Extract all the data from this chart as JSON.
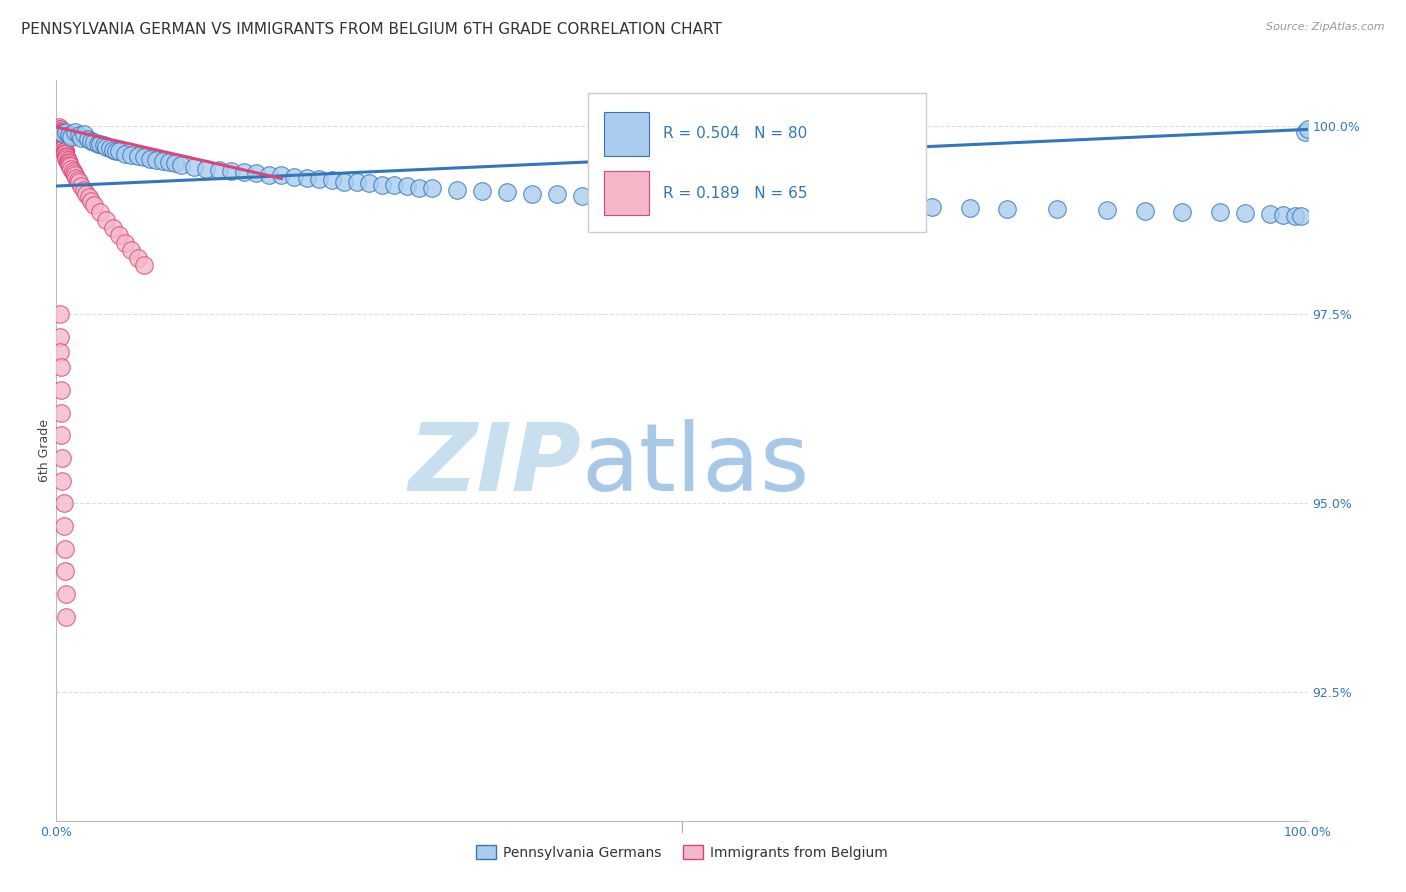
{
  "title": "PENNSYLVANIA GERMAN VS IMMIGRANTS FROM BELGIUM 6TH GRADE CORRELATION CHART",
  "source": "Source: ZipAtlas.com",
  "ylabel": "6th Grade",
  "ytick_labels": [
    "100.0%",
    "97.5%",
    "95.0%",
    "92.5%"
  ],
  "ytick_values": [
    1.0,
    0.975,
    0.95,
    0.925
  ],
  "xlim": [
    0.0,
    1.0
  ],
  "ylim": [
    0.908,
    1.006
  ],
  "legend_blue_label": "R = 0.504   N = 80",
  "legend_pink_label": "R = 0.189   N = 65",
  "legend_bottom_blue": "Pennsylvania Germans",
  "legend_bottom_pink": "Immigrants from Belgium",
  "blue_scatter_x": [
    0.005,
    0.008,
    0.01,
    0.012,
    0.015,
    0.018,
    0.02,
    0.022,
    0.025,
    0.028,
    0.03,
    0.033,
    0.035,
    0.038,
    0.04,
    0.043,
    0.045,
    0.048,
    0.05,
    0.055,
    0.06,
    0.065,
    0.07,
    0.075,
    0.08,
    0.085,
    0.09,
    0.095,
    0.1,
    0.11,
    0.12,
    0.13,
    0.14,
    0.15,
    0.16,
    0.17,
    0.18,
    0.19,
    0.2,
    0.21,
    0.22,
    0.23,
    0.24,
    0.25,
    0.26,
    0.27,
    0.28,
    0.29,
    0.3,
    0.32,
    0.34,
    0.36,
    0.38,
    0.4,
    0.42,
    0.44,
    0.46,
    0.48,
    0.5,
    0.53,
    0.56,
    0.59,
    0.62,
    0.65,
    0.68,
    0.7,
    0.73,
    0.76,
    0.8,
    0.84,
    0.87,
    0.9,
    0.93,
    0.95,
    0.97,
    0.98,
    0.99,
    0.995,
    0.998,
    1.0
  ],
  "blue_scatter_y": [
    0.999,
    0.9992,
    0.9988,
    0.9985,
    0.9991,
    0.9987,
    0.9983,
    0.9989,
    0.9982,
    0.998,
    0.9978,
    0.9976,
    0.9975,
    0.9974,
    0.9972,
    0.997,
    0.9968,
    0.9967,
    0.9966,
    0.9963,
    0.9961,
    0.996,
    0.9958,
    0.9956,
    0.9955,
    0.9953,
    0.9952,
    0.995,
    0.9948,
    0.9945,
    0.9943,
    0.9941,
    0.994,
    0.9938,
    0.9937,
    0.9935,
    0.9934,
    0.9932,
    0.993,
    0.9929,
    0.9928,
    0.9926,
    0.9925,
    0.9924,
    0.9922,
    0.9921,
    0.992,
    0.9918,
    0.9917,
    0.9915,
    0.9913,
    0.9912,
    0.991,
    0.9909,
    0.9907,
    0.9906,
    0.9905,
    0.9903,
    0.9902,
    0.99,
    0.9898,
    0.9897,
    0.9896,
    0.9895,
    0.9893,
    0.9892,
    0.9891,
    0.989,
    0.9889,
    0.9888,
    0.9887,
    0.9886,
    0.9885,
    0.9884,
    0.9883,
    0.9882,
    0.9881,
    0.988,
    0.9992,
    0.9995
  ],
  "blue_line_x": [
    0.0,
    1.0
  ],
  "blue_line_y": [
    0.992,
    0.9995
  ],
  "pink_scatter_x": [
    0.002,
    0.002,
    0.003,
    0.003,
    0.003,
    0.004,
    0.004,
    0.004,
    0.005,
    0.005,
    0.005,
    0.005,
    0.005,
    0.006,
    0.006,
    0.006,
    0.006,
    0.007,
    0.007,
    0.007,
    0.007,
    0.008,
    0.008,
    0.008,
    0.009,
    0.009,
    0.01,
    0.01,
    0.011,
    0.012,
    0.013,
    0.014,
    0.015,
    0.016,
    0.017,
    0.018,
    0.02,
    0.022,
    0.024,
    0.026,
    0.028,
    0.03,
    0.035,
    0.04,
    0.045,
    0.05,
    0.055,
    0.06,
    0.065,
    0.07,
    0.003,
    0.003,
    0.003,
    0.004,
    0.004,
    0.004,
    0.004,
    0.005,
    0.005,
    0.006,
    0.006,
    0.007,
    0.007,
    0.008,
    0.008
  ],
  "pink_scatter_y": [
    0.9998,
    0.9996,
    0.9995,
    0.9993,
    0.9991,
    0.999,
    0.9988,
    0.9986,
    0.9985,
    0.9983,
    0.9981,
    0.9979,
    0.9977,
    0.9976,
    0.9974,
    0.9972,
    0.997,
    0.9968,
    0.9966,
    0.9964,
    0.9962,
    0.996,
    0.9958,
    0.9956,
    0.9954,
    0.9952,
    0.995,
    0.9948,
    0.9946,
    0.9943,
    0.994,
    0.9937,
    0.9934,
    0.9931,
    0.9928,
    0.9925,
    0.992,
    0.9915,
    0.991,
    0.9905,
    0.99,
    0.9895,
    0.9885,
    0.9875,
    0.9865,
    0.9855,
    0.9845,
    0.9835,
    0.9825,
    0.9815,
    0.975,
    0.972,
    0.97,
    0.968,
    0.965,
    0.962,
    0.959,
    0.956,
    0.953,
    0.95,
    0.947,
    0.944,
    0.941,
    0.938,
    0.935
  ],
  "pink_line_x": [
    0.0,
    0.18
  ],
  "pink_line_y": [
    0.9998,
    0.993
  ],
  "blue_color": "#aaccee",
  "pink_color": "#f5b8c8",
  "blue_line_color": "#3377bb",
  "pink_line_color": "#dd4477",
  "grid_color": "#dddddd",
  "watermark_zip": "ZIP",
  "watermark_atlas": "atlas",
  "watermark_color_zip": "#c8dff0",
  "watermark_color_atlas": "#a8c8e8",
  "title_fontsize": 11,
  "axis_label_fontsize": 9,
  "tick_fontsize": 9,
  "source_fontsize": 8,
  "legend_fontsize": 11
}
